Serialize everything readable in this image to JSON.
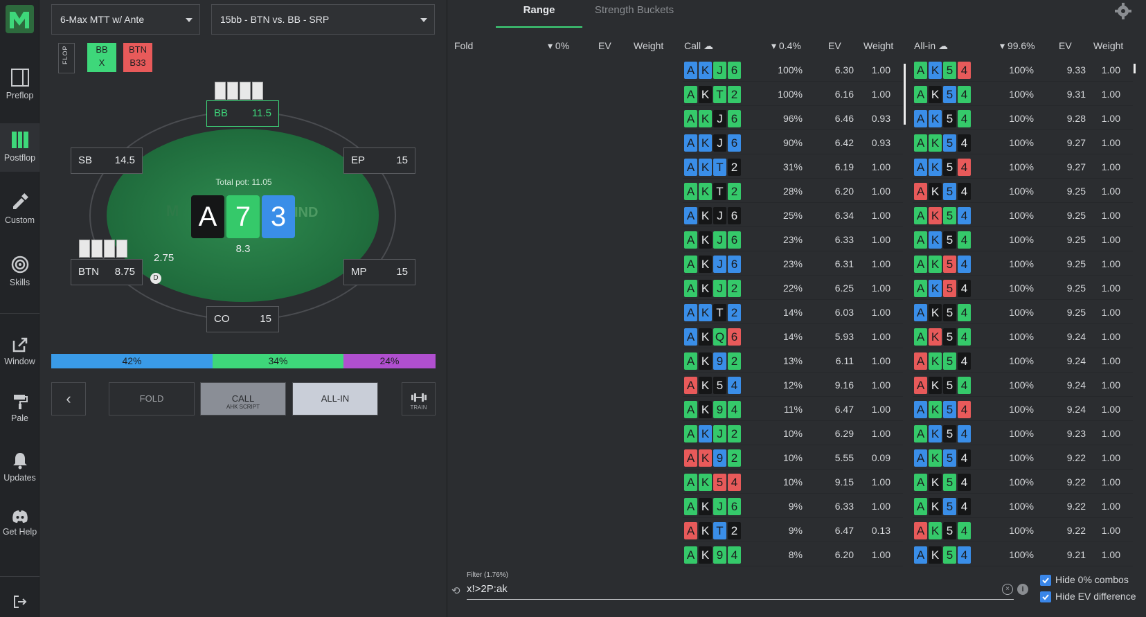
{
  "sidebar": {
    "items": [
      {
        "label": "Preflop",
        "icon": "preflop-icon"
      },
      {
        "label": "Postflop",
        "icon": "postflop-icon"
      },
      {
        "label": "Custom",
        "icon": "custom-icon"
      },
      {
        "label": "Skills",
        "icon": "skills-icon"
      },
      {
        "label": "Window",
        "icon": "window-icon"
      },
      {
        "label": "Pale",
        "icon": "paint-roller-icon"
      },
      {
        "label": "Updates",
        "icon": "bell-icon"
      },
      {
        "label": "Get Help",
        "icon": "discord-icon"
      }
    ]
  },
  "header": {
    "game_select": "6-Max MTT w/ Ante",
    "scenario_select": "15bb - BTN vs. BB - SRP"
  },
  "history": {
    "street": "FLOP",
    "chips": [
      {
        "pos": "BB",
        "action": "X",
        "color": "#3ed77a"
      },
      {
        "pos": "BTN",
        "action": "B33",
        "color": "#e85a5a"
      }
    ]
  },
  "table": {
    "pot_label": "Total pot: 11.05",
    "watermark": "IND",
    "board": [
      {
        "rank": "A",
        "color": "#151617"
      },
      {
        "rank": "7",
        "color": "#35c96a"
      },
      {
        "rank": "3",
        "color": "#3a8ee8"
      }
    ],
    "center_bet": "8.3",
    "btn_bet": "2.75",
    "dealer": "D",
    "seats": {
      "bb": {
        "name": "BB",
        "stack": "11.5"
      },
      "sb": {
        "name": "SB",
        "stack": "14.5"
      },
      "ep": {
        "name": "EP",
        "stack": "15"
      },
      "btn": {
        "name": "BTN",
        "stack": "8.75"
      },
      "mp": {
        "name": "MP",
        "stack": "15"
      },
      "co": {
        "name": "CO",
        "stack": "15"
      }
    }
  },
  "ratio": [
    {
      "label": "42%",
      "value": 42,
      "color": "#3a9be8"
    },
    {
      "label": "34%",
      "value": 34,
      "color": "#3ed77a"
    },
    {
      "label": "24%",
      "value": 24,
      "color": "#b04fcf"
    }
  ],
  "actions": {
    "back": "‹",
    "fold": "FOLD",
    "call": "CALL",
    "call_sub": "AHK SCRIPT",
    "allin": "ALL-IN",
    "train": "TRAIN"
  },
  "tabs": {
    "range": "Range",
    "strength": "Strength Buckets"
  },
  "columns": {
    "fold": {
      "label": "Fold",
      "pct": "0%",
      "ev": "EV",
      "weight": "Weight"
    },
    "call": {
      "label": "Call",
      "pct": "0.4%",
      "ev": "EV",
      "weight": "Weight"
    },
    "allin": {
      "label": "All-in",
      "pct": "99.6%",
      "ev": "EV",
      "weight": "Weight"
    }
  },
  "suit_colors": {
    "s": "#151617",
    "h": "#e85a5a",
    "d": "#3a8ee8",
    "c": "#35c96a"
  },
  "call_rows": [
    {
      "cards": "AdKdJcJ6c",
      "c": [
        "A",
        "K",
        "J",
        "6"
      ],
      "s": [
        "d",
        "d",
        "c",
        "c"
      ],
      "pct": "100%",
      "ev": "6.30",
      "w": "1.00"
    },
    {
      "c": [
        "A",
        "K",
        "T",
        "2"
      ],
      "s": [
        "c",
        "s",
        "c",
        "c"
      ],
      "pct": "100%",
      "ev": "6.16",
      "w": "1.00"
    },
    {
      "c": [
        "A",
        "K",
        "J",
        "6"
      ],
      "s": [
        "c",
        "c",
        "s",
        "c"
      ],
      "pct": "96%",
      "ev": "6.46",
      "w": "0.93"
    },
    {
      "c": [
        "A",
        "K",
        "J",
        "6"
      ],
      "s": [
        "d",
        "d",
        "s",
        "d"
      ],
      "pct": "90%",
      "ev": "6.42",
      "w": "0.93"
    },
    {
      "c": [
        "A",
        "K",
        "T",
        "2"
      ],
      "s": [
        "d",
        "d",
        "d",
        "s"
      ],
      "pct": "31%",
      "ev": "6.19",
      "w": "1.00"
    },
    {
      "c": [
        "A",
        "K",
        "T",
        "2"
      ],
      "s": [
        "c",
        "c",
        "s",
        "c"
      ],
      "pct": "28%",
      "ev": "6.20",
      "w": "1.00"
    },
    {
      "c": [
        "A",
        "K",
        "J",
        "6"
      ],
      "s": [
        "d",
        "s",
        "s",
        "s"
      ],
      "pct": "25%",
      "ev": "6.34",
      "w": "1.00"
    },
    {
      "c": [
        "A",
        "K",
        "J",
        "6"
      ],
      "s": [
        "c",
        "s",
        "c",
        "c"
      ],
      "pct": "23%",
      "ev": "6.33",
      "w": "1.00"
    },
    {
      "c": [
        "A",
        "K",
        "J",
        "6"
      ],
      "s": [
        "c",
        "s",
        "d",
        "d"
      ],
      "pct": "23%",
      "ev": "6.31",
      "w": "1.00"
    },
    {
      "c": [
        "A",
        "K",
        "J",
        "2"
      ],
      "s": [
        "c",
        "s",
        "c",
        "c"
      ],
      "pct": "22%",
      "ev": "6.25",
      "w": "1.00"
    },
    {
      "c": [
        "A",
        "K",
        "T",
        "2"
      ],
      "s": [
        "d",
        "d",
        "s",
        "d"
      ],
      "pct": "14%",
      "ev": "6.03",
      "w": "1.00"
    },
    {
      "c": [
        "A",
        "K",
        "Q",
        "6"
      ],
      "s": [
        "d",
        "s",
        "c",
        "h"
      ],
      "pct": "14%",
      "ev": "5.93",
      "w": "1.00"
    },
    {
      "c": [
        "A",
        "K",
        "9",
        "2"
      ],
      "s": [
        "c",
        "s",
        "d",
        "c"
      ],
      "pct": "13%",
      "ev": "6.11",
      "w": "1.00"
    },
    {
      "c": [
        "A",
        "K",
        "5",
        "4"
      ],
      "s": [
        "h",
        "s",
        "s",
        "d"
      ],
      "pct": "12%",
      "ev": "9.16",
      "w": "1.00"
    },
    {
      "c": [
        "A",
        "K",
        "9",
        "4"
      ],
      "s": [
        "c",
        "s",
        "c",
        "c"
      ],
      "pct": "11%",
      "ev": "6.47",
      "w": "1.00"
    },
    {
      "c": [
        "A",
        "K",
        "J",
        "2"
      ],
      "s": [
        "c",
        "d",
        "c",
        "c"
      ],
      "pct": "10%",
      "ev": "6.29",
      "w": "1.00"
    },
    {
      "c": [
        "A",
        "K",
        "9",
        "2"
      ],
      "s": [
        "h",
        "h",
        "d",
        "c"
      ],
      "pct": "10%",
      "ev": "5.55",
      "w": "0.09"
    },
    {
      "c": [
        "A",
        "K",
        "5",
        "4"
      ],
      "s": [
        "c",
        "c",
        "h",
        "h"
      ],
      "pct": "10%",
      "ev": "9.15",
      "w": "1.00"
    },
    {
      "c": [
        "A",
        "K",
        "J",
        "6"
      ],
      "s": [
        "c",
        "s",
        "c",
        "c"
      ],
      "pct": "9%",
      "ev": "6.33",
      "w": "1.00"
    },
    {
      "c": [
        "A",
        "K",
        "T",
        "2"
      ],
      "s": [
        "h",
        "s",
        "d",
        "s"
      ],
      "pct": "9%",
      "ev": "6.47",
      "w": "0.13"
    },
    {
      "c": [
        "A",
        "K",
        "9",
        "4"
      ],
      "s": [
        "c",
        "s",
        "c",
        "c"
      ],
      "pct": "8%",
      "ev": "6.20",
      "w": "1.00"
    }
  ],
  "allin_rows": [
    {
      "c": [
        "A",
        "K",
        "5",
        "4"
      ],
      "s": [
        "c",
        "d",
        "c",
        "h"
      ],
      "pct": "100%",
      "ev": "9.33",
      "w": "1.00"
    },
    {
      "c": [
        "A",
        "K",
        "5",
        "4"
      ],
      "s": [
        "c",
        "s",
        "d",
        "c"
      ],
      "pct": "100%",
      "ev": "9.31",
      "w": "1.00"
    },
    {
      "c": [
        "A",
        "K",
        "5",
        "4"
      ],
      "s": [
        "d",
        "d",
        "s",
        "c"
      ],
      "pct": "100%",
      "ev": "9.28",
      "w": "1.00"
    },
    {
      "c": [
        "A",
        "K",
        "5",
        "4"
      ],
      "s": [
        "c",
        "c",
        "d",
        "s"
      ],
      "pct": "100%",
      "ev": "9.27",
      "w": "1.00"
    },
    {
      "c": [
        "A",
        "K",
        "5",
        "4"
      ],
      "s": [
        "d",
        "d",
        "s",
        "h"
      ],
      "pct": "100%",
      "ev": "9.27",
      "w": "1.00"
    },
    {
      "c": [
        "A",
        "K",
        "5",
        "4"
      ],
      "s": [
        "h",
        "s",
        "d",
        "s"
      ],
      "pct": "100%",
      "ev": "9.25",
      "w": "1.00"
    },
    {
      "c": [
        "A",
        "K",
        "5",
        "4"
      ],
      "s": [
        "c",
        "h",
        "c",
        "d"
      ],
      "pct": "100%",
      "ev": "9.25",
      "w": "1.00"
    },
    {
      "c": [
        "A",
        "K",
        "5",
        "4"
      ],
      "s": [
        "c",
        "d",
        "s",
        "c"
      ],
      "pct": "100%",
      "ev": "9.25",
      "w": "1.00"
    },
    {
      "c": [
        "A",
        "K",
        "5",
        "4"
      ],
      "s": [
        "c",
        "c",
        "h",
        "d"
      ],
      "pct": "100%",
      "ev": "9.25",
      "w": "1.00"
    },
    {
      "c": [
        "A",
        "K",
        "5",
        "4"
      ],
      "s": [
        "c",
        "d",
        "h",
        "s"
      ],
      "pct": "100%",
      "ev": "9.25",
      "w": "1.00"
    },
    {
      "c": [
        "A",
        "K",
        "5",
        "4"
      ],
      "s": [
        "d",
        "s",
        "s",
        "c"
      ],
      "pct": "100%",
      "ev": "9.25",
      "w": "1.00"
    },
    {
      "c": [
        "A",
        "K",
        "5",
        "4"
      ],
      "s": [
        "c",
        "h",
        "s",
        "c"
      ],
      "pct": "100%",
      "ev": "9.24",
      "w": "1.00"
    },
    {
      "c": [
        "A",
        "K",
        "5",
        "4"
      ],
      "s": [
        "h",
        "c",
        "c",
        "s"
      ],
      "pct": "100%",
      "ev": "9.24",
      "w": "1.00"
    },
    {
      "c": [
        "A",
        "K",
        "5",
        "4"
      ],
      "s": [
        "h",
        "s",
        "s",
        "c"
      ],
      "pct": "100%",
      "ev": "9.24",
      "w": "1.00"
    },
    {
      "c": [
        "A",
        "K",
        "5",
        "4"
      ],
      "s": [
        "d",
        "c",
        "d",
        "h"
      ],
      "pct": "100%",
      "ev": "9.24",
      "w": "1.00"
    },
    {
      "c": [
        "A",
        "K",
        "5",
        "4"
      ],
      "s": [
        "c",
        "d",
        "s",
        "d"
      ],
      "pct": "100%",
      "ev": "9.23",
      "w": "1.00"
    },
    {
      "c": [
        "A",
        "K",
        "5",
        "4"
      ],
      "s": [
        "d",
        "c",
        "d",
        "s"
      ],
      "pct": "100%",
      "ev": "9.22",
      "w": "1.00"
    },
    {
      "c": [
        "A",
        "K",
        "5",
        "4"
      ],
      "s": [
        "c",
        "s",
        "c",
        "s"
      ],
      "pct": "100%",
      "ev": "9.22",
      "w": "1.00"
    },
    {
      "c": [
        "A",
        "K",
        "5",
        "4"
      ],
      "s": [
        "c",
        "s",
        "d",
        "s"
      ],
      "pct": "100%",
      "ev": "9.22",
      "w": "1.00"
    },
    {
      "c": [
        "A",
        "K",
        "5",
        "4"
      ],
      "s": [
        "h",
        "c",
        "s",
        "c"
      ],
      "pct": "100%",
      "ev": "9.22",
      "w": "1.00"
    },
    {
      "c": [
        "A",
        "K",
        "5",
        "4"
      ],
      "s": [
        "d",
        "s",
        "c",
        "d"
      ],
      "pct": "100%",
      "ev": "9.21",
      "w": "1.00"
    }
  ],
  "filter": {
    "label": "Filter (1.76%)",
    "value": "x!>2P:ak",
    "hide_zero": "Hide 0% combos",
    "hide_ev": "Hide EV difference"
  }
}
